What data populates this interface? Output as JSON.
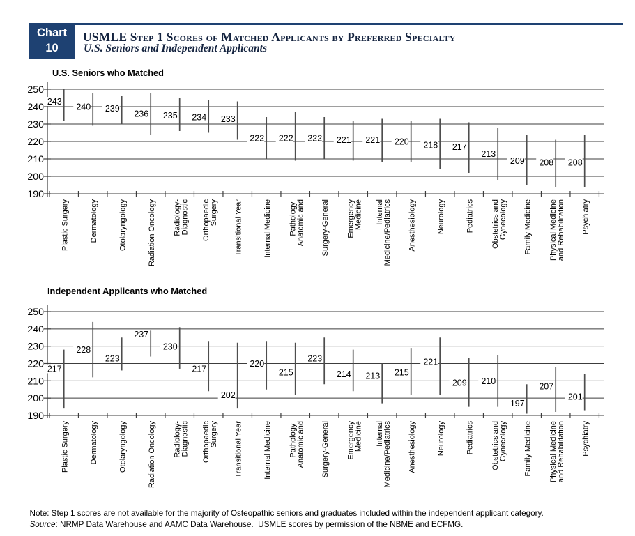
{
  "header": {
    "chart_label_line1": "Chart",
    "chart_label_line2": "10",
    "title": "USMLE Step 1 Scores of Matched Applicants by Preferred Specialty",
    "subtitle": "U.S. Seniors and Independent Applicants",
    "accent_color": "#1e4172",
    "title_ink": "#14233f"
  },
  "chart_data": [
    {
      "type": "bar",
      "subtype": "high-low range bars with mean labels",
      "title": "U.S. Seniors who Matched",
      "xlabel": "",
      "ylabel": "",
      "ylim": [
        190,
        250
      ],
      "yticks": [
        250,
        240,
        230,
        220,
        210,
        200,
        190
      ],
      "grid": "horizontal",
      "legend": "none",
      "grid_color": "#3c3c3c",
      "stroke_color": "#4d4d4d",
      "text_color": "#000000",
      "categories": [
        [
          "Plastic Surgery"
        ],
        [
          "Dermatology"
        ],
        [
          "Otolaryngology"
        ],
        [
          "Radiation Oncology"
        ],
        [
          "Radiology-",
          "Diagnostic"
        ],
        [
          "Orthopaedic",
          "Surgery"
        ],
        [
          "Transitional Year"
        ],
        [
          "Internal Medicine"
        ],
        [
          "Pathology-",
          "Anatomic and"
        ],
        [
          "Surgery-General"
        ],
        [
          "Emergency",
          "Medicine"
        ],
        [
          "Internal",
          "Medicine/Pediatrics"
        ],
        [
          "Anesthesiology"
        ],
        [
          "Neurology"
        ],
        [
          "Pediatrics"
        ],
        [
          "Obstetrics and",
          "Gynecology"
        ],
        [
          "Family Medicine"
        ],
        [
          "Physical Medicine",
          "and Rehabilitation"
        ],
        [
          "Psychiatry"
        ]
      ],
      "points": [
        {
          "label": 243,
          "lo": 232,
          "hi": 250
        },
        {
          "label": 240,
          "lo": 229,
          "hi": 248
        },
        {
          "label": 239,
          "lo": 230,
          "hi": 246
        },
        {
          "label": 236,
          "lo": 224,
          "hi": 248
        },
        {
          "label": 235,
          "lo": 226,
          "hi": 245
        },
        {
          "label": 234,
          "lo": 225,
          "hi": 244
        },
        {
          "label": 233,
          "lo": 221,
          "hi": 243
        },
        {
          "label": 222,
          "lo": 210,
          "hi": 234
        },
        {
          "label": 222,
          "lo": 209,
          "hi": 237
        },
        {
          "label": 222,
          "lo": 210,
          "hi": 234
        },
        {
          "label": 221,
          "lo": 209,
          "hi": 232
        },
        {
          "label": 221,
          "lo": 208,
          "hi": 233
        },
        {
          "label": 220,
          "lo": 208,
          "hi": 232
        },
        {
          "label": 218,
          "lo": 204,
          "hi": 233
        },
        {
          "label": 217,
          "lo": 202,
          "hi": 231
        },
        {
          "label": 213,
          "lo": 198,
          "hi": 228
        },
        {
          "label": 209,
          "lo": 195,
          "hi": 224
        },
        {
          "label": 208,
          "lo": 194,
          "hi": 221
        },
        {
          "label": 208,
          "lo": 194,
          "hi": 224
        }
      ]
    },
    {
      "type": "bar",
      "subtype": "high-low range bars with mean labels",
      "title": "Independent Applicants who Matched",
      "xlabel": "",
      "ylabel": "",
      "ylim": [
        190,
        250
      ],
      "yticks": [
        250,
        240,
        230,
        220,
        210,
        200,
        190
      ],
      "grid": "horizontal",
      "legend": "none",
      "grid_color": "#3c3c3c",
      "stroke_color": "#4d4d4d",
      "text_color": "#000000",
      "categories": [
        [
          "Plastic Surgery"
        ],
        [
          "Dermatology"
        ],
        [
          "Otolaryngology"
        ],
        [
          "Radiation Oncology"
        ],
        [
          "Radiology-",
          "Diagnostic"
        ],
        [
          "Orthopaedic",
          "Surgery"
        ],
        [
          "Transitional Year"
        ],
        [
          "Internal Medicine"
        ],
        [
          "Pathology-",
          "Anatomic and"
        ],
        [
          "Surgery-General"
        ],
        [
          "Emergency",
          "Medicine"
        ],
        [
          "Internal",
          "Medicine/Pediatrics"
        ],
        [
          "Anesthesiology"
        ],
        [
          "Neurology"
        ],
        [
          "Pediatrics"
        ],
        [
          "Obstetrics and",
          "Gynecology"
        ],
        [
          "Family Medicine"
        ],
        [
          "Physical Medicine",
          "and Rehabilitation"
        ],
        [
          "Psychiatry"
        ]
      ],
      "points": [
        {
          "label": 217,
          "lo": 194,
          "hi": 228
        },
        {
          "label": 228,
          "lo": 212,
          "hi": 244
        },
        {
          "label": 223,
          "lo": 216,
          "hi": 235
        },
        {
          "label": 237,
          "lo": 224,
          "hi": 239
        },
        {
          "label": 230,
          "lo": 217,
          "hi": 241
        },
        {
          "label": 217,
          "lo": 204,
          "hi": 233
        },
        {
          "label": 202,
          "lo": 194,
          "hi": 232
        },
        {
          "label": 220,
          "lo": 205,
          "hi": 233
        },
        {
          "label": 215,
          "lo": 202,
          "hi": 232
        },
        {
          "label": 223,
          "lo": 208,
          "hi": 235
        },
        {
          "label": 214,
          "lo": 204,
          "hi": 228
        },
        {
          "label": 213,
          "lo": 197,
          "hi": 220
        },
        {
          "label": 215,
          "lo": 202,
          "hi": 229
        },
        {
          "label": 221,
          "lo": 202,
          "hi": 235
        },
        {
          "label": 209,
          "lo": 195,
          "hi": 223
        },
        {
          "label": 210,
          "lo": 195,
          "hi": 225
        },
        {
          "label": 197,
          "lo": 191,
          "hi": 208
        },
        {
          "label": 207,
          "lo": 192,
          "hi": 218
        },
        {
          "label": 201,
          "lo": 193,
          "hi": 214
        }
      ]
    }
  ],
  "footer": {
    "note": "Note: Step 1 scores are not available for the majority of Osteopathic seniors and graduates included within the independent applicant category.",
    "source_label": "Source",
    "source_rest": ": NRMP Data Warehouse and AAMC Data Warehouse.  USMLE scores by permission of the NBME and ECFMG."
  }
}
